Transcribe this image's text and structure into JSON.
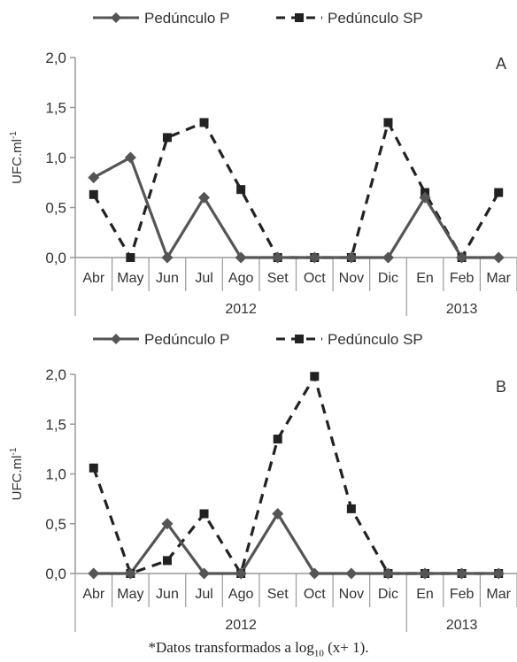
{
  "footnote": {
    "prefix": "*Datos transformados a log",
    "sub": "10",
    "suffix": " (x+ 1)."
  },
  "chart_data": [
    {
      "type": "line",
      "panel_label": "A",
      "ylabel": "UFC.ml",
      "ylabel_sup": "-1",
      "categories": [
        "Abr",
        "May",
        "Jun",
        "Jul",
        "Ago",
        "Set",
        "Oct",
        "Nov",
        "Dic",
        "En",
        "Feb",
        "Mar"
      ],
      "year_groups": [
        {
          "label": "2012",
          "from": 0,
          "to": 8
        },
        {
          "label": "2013",
          "from": 9,
          "to": 11
        }
      ],
      "ylim": [
        0,
        2.0
      ],
      "yticks": [
        "0,0",
        "0,5",
        "1,0",
        "1,5",
        "2,0"
      ],
      "grid": false,
      "legend_position": "top",
      "series": [
        {
          "name": "Pedúnculo P",
          "style": "solid",
          "marker": "diamond",
          "color": "#555555",
          "values": [
            0.8,
            1.0,
            0,
            0.6,
            0,
            0,
            0,
            0,
            0,
            0.6,
            0,
            0
          ]
        },
        {
          "name": "Pedúnculo SP",
          "style": "dashed",
          "marker": "square",
          "color": "#222222",
          "values": [
            0.63,
            0,
            1.2,
            1.35,
            0.68,
            0,
            0,
            0,
            1.35,
            0.65,
            0,
            0.65
          ]
        }
      ]
    },
    {
      "type": "line",
      "panel_label": "B",
      "ylabel": "UFC.ml",
      "ylabel_sup": "-1",
      "categories": [
        "Abr",
        "May",
        "Jun",
        "Jul",
        "Ago",
        "Set",
        "Oct",
        "Nov",
        "Dic",
        "En",
        "Feb",
        "Mar"
      ],
      "year_groups": [
        {
          "label": "2012",
          "from": 0,
          "to": 8
        },
        {
          "label": "2013",
          "from": 9,
          "to": 11
        }
      ],
      "ylim": [
        0,
        2.0
      ],
      "yticks": [
        "0,0",
        "0,5",
        "1,0",
        "1,5",
        "2,0"
      ],
      "grid": false,
      "legend_position": "top",
      "series": [
        {
          "name": "Pedúnculo P",
          "style": "solid",
          "marker": "diamond",
          "color": "#555555",
          "values": [
            0,
            0,
            0.5,
            0,
            0,
            0.6,
            0,
            0,
            0,
            0,
            0,
            0
          ]
        },
        {
          "name": "Pedúnculo SP",
          "style": "dashed",
          "marker": "square",
          "color": "#222222",
          "values": [
            1.06,
            0,
            0.13,
            0.6,
            0,
            1.35,
            1.98,
            0.65,
            0,
            0,
            0,
            0
          ]
        }
      ]
    }
  ]
}
